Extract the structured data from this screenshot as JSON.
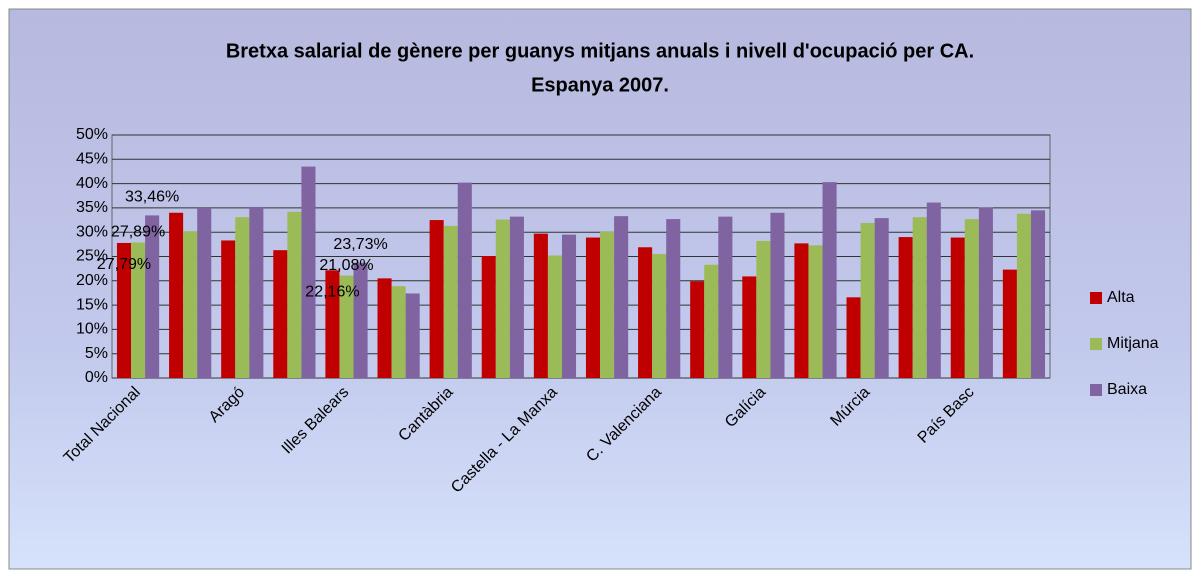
{
  "chart_data": {
    "type": "bar",
    "title": "Bretxa salarial de gènere per guanys mitjans anuals i nivell d'ocupació per CA.",
    "subtitle": "Espanya 2007.",
    "categories": [
      "Total Nacional",
      null,
      "Aragó",
      null,
      "Illes Balears",
      null,
      "Cantàbria",
      null,
      "Castella - La Manxa",
      null,
      "C. Valenciana",
      null,
      "Galícia",
      null,
      "Múrcia",
      null,
      "País Basc",
      null
    ],
    "series": [
      {
        "name": "Alta",
        "color": "#c00000",
        "values": [
          27.79,
          34.0,
          28.3,
          26.3,
          22.16,
          20.5,
          32.5,
          25.1,
          29.7,
          28.9,
          26.9,
          19.9,
          20.9,
          27.7,
          16.6,
          29.0,
          28.9,
          22.3
        ],
        "value_labels": [
          "27,79%",
          null,
          null,
          null,
          "22,16%",
          null,
          null,
          null,
          null,
          null,
          null,
          null,
          null,
          null,
          null,
          null,
          null,
          null
        ]
      },
      {
        "name": "Mitjana",
        "color": "#9bbb59",
        "values": [
          27.89,
          30.2,
          33.1,
          34.2,
          21.08,
          18.9,
          31.3,
          32.6,
          25.2,
          30.1,
          25.5,
          23.3,
          28.2,
          27.3,
          31.9,
          33.1,
          32.7,
          33.8
        ],
        "value_labels": [
          "27,89%",
          null,
          null,
          null,
          "21,08%",
          null,
          null,
          null,
          null,
          null,
          null,
          null,
          null,
          null,
          null,
          null,
          null,
          null
        ]
      },
      {
        "name": "Baixa",
        "color": "#8064a2",
        "values": [
          33.46,
          35.0,
          35.2,
          43.5,
          23.73,
          17.4,
          40.2,
          33.2,
          29.5,
          33.3,
          32.7,
          33.2,
          34.0,
          40.3,
          32.9,
          36.1,
          35.1,
          34.5
        ],
        "value_labels": [
          "33,46%",
          null,
          null,
          null,
          "23,73%",
          null,
          null,
          null,
          null,
          null,
          null,
          null,
          null,
          null,
          null,
          null,
          null,
          null
        ]
      }
    ],
    "ylim": [
      0,
      50
    ],
    "yticks": [
      {
        "value": 0,
        "label": "0%"
      },
      {
        "value": 5,
        "label": "5%"
      },
      {
        "value": 10,
        "label": "10%"
      },
      {
        "value": 15,
        "label": "15%"
      },
      {
        "value": 20,
        "label": "20%"
      },
      {
        "value": 25,
        "label": "25%"
      },
      {
        "value": 30,
        "label": "30%"
      },
      {
        "value": 35,
        "label": "35%"
      },
      {
        "value": 40,
        "label": "40%"
      },
      {
        "value": 45,
        "label": "45%"
      },
      {
        "value": 50,
        "label": "50%"
      }
    ],
    "grid": true,
    "legend": "right"
  }
}
